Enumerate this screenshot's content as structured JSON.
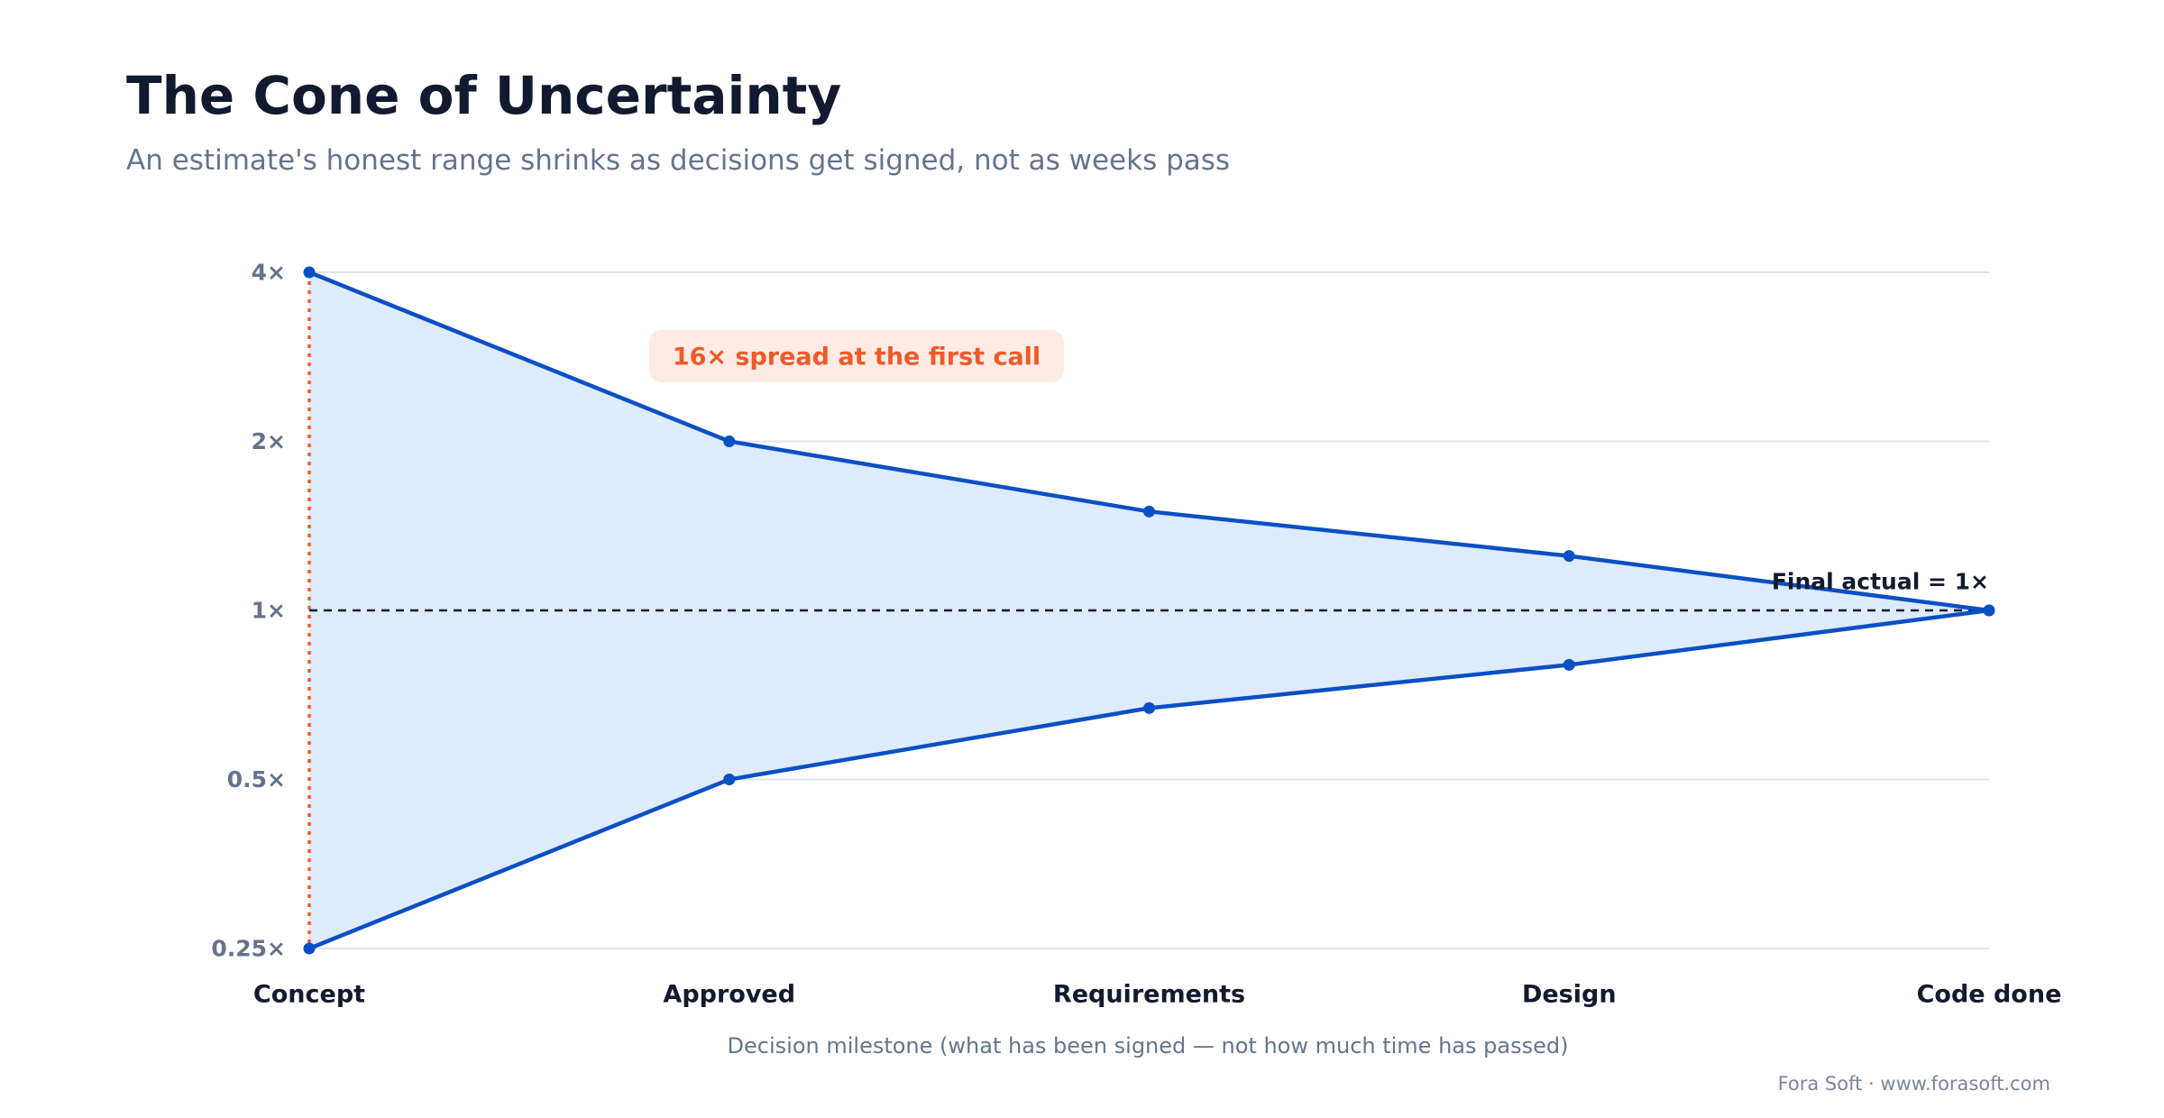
{
  "header": {
    "title": "The Cone of Uncertainty",
    "subtitle": "An estimate's honest range shrinks as decisions get signed, not as weeks pass"
  },
  "footer": {
    "credit": "Fora Soft · www.forasoft.com"
  },
  "colors": {
    "line": "#0a4fc4",
    "fill": "#ddebfc",
    "grid": "#dfe4ec",
    "accent": "#f05a28",
    "annotation_bg": "#fdebe4",
    "axis_text": "#64748b",
    "dark_text": "#111a2e"
  },
  "chart_data": {
    "type": "area",
    "title": "The Cone of Uncertainty",
    "subtitle": "An estimate's honest range shrinks as decisions get signed, not as weeks pass",
    "xlabel": "Decision milestone (what has been signed — not how much time has passed)",
    "ylabel": "",
    "y_scale": "log2",
    "ylim": [
      0.25,
      4
    ],
    "yticks": [
      {
        "value": 4,
        "label": "4×"
      },
      {
        "value": 2,
        "label": "2×"
      },
      {
        "value": 1,
        "label": "1×"
      },
      {
        "value": 0.5,
        "label": "0.5×"
      },
      {
        "value": 0.25,
        "label": "0.25×"
      }
    ],
    "grid": true,
    "categories": [
      "Concept",
      "Approved",
      "Requirements",
      "Design",
      "Code done"
    ],
    "series": [
      {
        "values": [
          4,
          2,
          1.5,
          1.25,
          1
        ]
      },
      {
        "values": [
          0.25,
          0.5,
          0.67,
          0.8,
          1
        ]
      }
    ],
    "reference_line": {
      "value": 1,
      "label": "Final actual = 1×"
    },
    "annotation": {
      "text": "16× spread at the first call",
      "category": "Concept"
    }
  }
}
